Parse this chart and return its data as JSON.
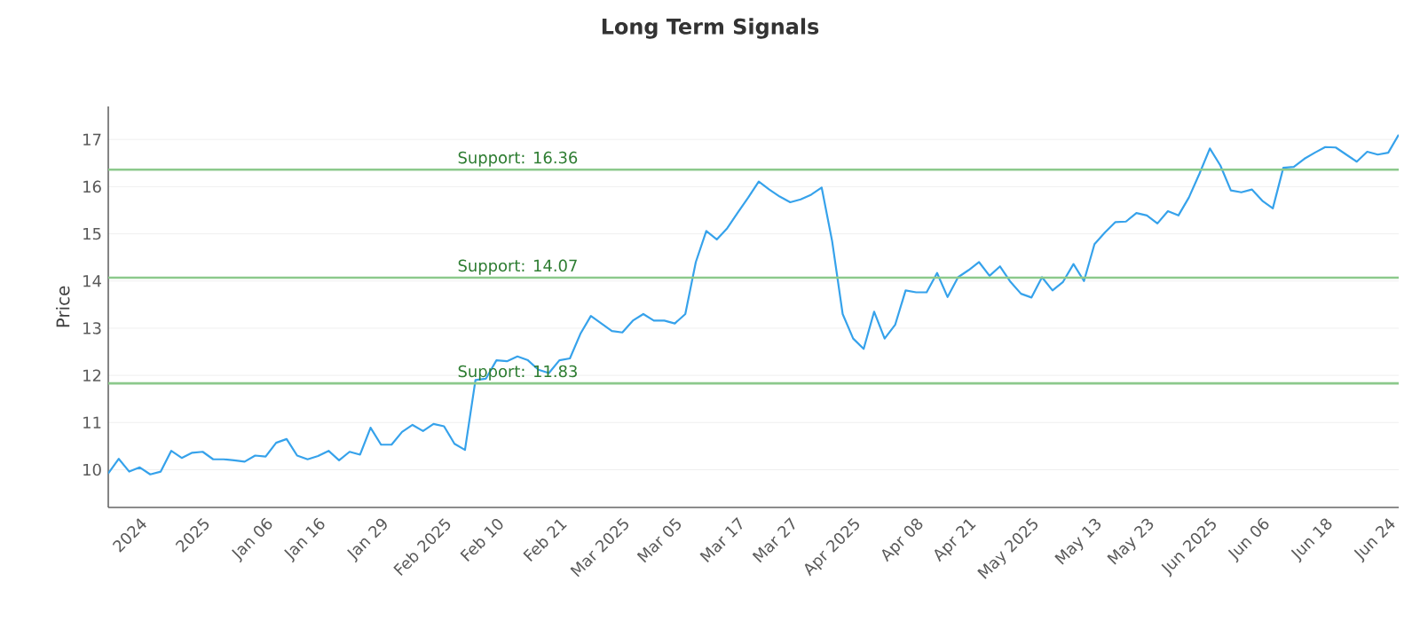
{
  "chart_data": {
    "type": "line",
    "title": "Long Term Signals",
    "ylabel": "Price",
    "categories": [
      null,
      null,
      null,
      "2024",
      null,
      null,
      null,
      null,
      null,
      "2025",
      null,
      null,
      null,
      null,
      null,
      "Jan 06",
      null,
      null,
      null,
      null,
      "Jan 16",
      null,
      null,
      null,
      null,
      null,
      "Jan 29",
      null,
      null,
      null,
      null,
      null,
      "Feb 2025",
      null,
      null,
      null,
      null,
      "Feb 10",
      null,
      null,
      null,
      null,
      null,
      "Feb 21",
      null,
      null,
      null,
      null,
      null,
      "Mar 2025",
      null,
      null,
      null,
      null,
      "Mar 05",
      null,
      null,
      null,
      null,
      null,
      "Mar 17",
      null,
      null,
      null,
      null,
      "Mar 27",
      null,
      null,
      null,
      null,
      null,
      "Apr 2025",
      null,
      null,
      null,
      null,
      null,
      "Apr 08",
      null,
      null,
      null,
      null,
      "Apr 21",
      null,
      null,
      null,
      null,
      null,
      "May 2025",
      null,
      null,
      null,
      null,
      null,
      "May 13",
      null,
      null,
      null,
      null,
      "May 23",
      null,
      null,
      null,
      null,
      null,
      "Jun 2025",
      null,
      null,
      null,
      null,
      "Jun 06",
      null,
      null,
      null,
      null,
      null,
      "Jun 18",
      null,
      null,
      null,
      null,
      null,
      "Jun 24",
      null
    ],
    "series": [
      {
        "color": "#36a2eb",
        "values": [
          9.92,
          10.23,
          9.96,
          10.05,
          9.9,
          9.96,
          10.4,
          10.25,
          10.36,
          10.38,
          10.22,
          10.22,
          10.2,
          10.17,
          10.3,
          10.28,
          10.57,
          10.65,
          10.3,
          10.22,
          10.29,
          10.4,
          10.2,
          10.38,
          10.32,
          10.89,
          10.53,
          10.53,
          10.8,
          10.95,
          10.82,
          10.97,
          10.92,
          10.55,
          10.42,
          11.9,
          11.93,
          12.32,
          12.3,
          12.4,
          12.32,
          12.12,
          12.05,
          12.32,
          12.36,
          12.88,
          13.26,
          13.1,
          12.94,
          12.91,
          13.16,
          13.3,
          13.16,
          13.16,
          13.1,
          13.3,
          14.4,
          15.06,
          14.88,
          15.12,
          15.45,
          15.77,
          16.11,
          15.94,
          15.79,
          15.67,
          15.73,
          15.83,
          15.98,
          14.84,
          13.3,
          12.78,
          12.56,
          13.35,
          12.78,
          13.07,
          13.8,
          13.76,
          13.76,
          14.17,
          13.66,
          14.08,
          14.23,
          14.4,
          14.11,
          14.31,
          13.98,
          13.73,
          13.65,
          14.08,
          13.8,
          13.98,
          14.36,
          14.0,
          14.78,
          15.03,
          15.25,
          15.26,
          15.44,
          15.39,
          15.22,
          15.48,
          15.39,
          15.77,
          16.27,
          16.81,
          16.45,
          15.92,
          15.88,
          15.94,
          15.7,
          15.54,
          16.4,
          16.42,
          16.59,
          16.72,
          16.84,
          16.83,
          16.68,
          16.53,
          16.74,
          16.68,
          16.72,
          17.1
        ]
      }
    ],
    "ylim": [
      9.2,
      17.7
    ],
    "yticks": [
      10,
      11,
      12,
      13,
      14,
      15,
      16,
      17
    ],
    "grid": "y",
    "ref_lines": [
      {
        "axis": "y",
        "value": 16.36,
        "label": "Support: 16.36",
        "color": "#8cc98c"
      },
      {
        "axis": "y",
        "value": 14.07,
        "label": "Support: 14.07",
        "color": "#8cc98c"
      },
      {
        "axis": "y",
        "value": 11.83,
        "label": "Support: 11.83",
        "color": "#8cc98c"
      }
    ]
  }
}
